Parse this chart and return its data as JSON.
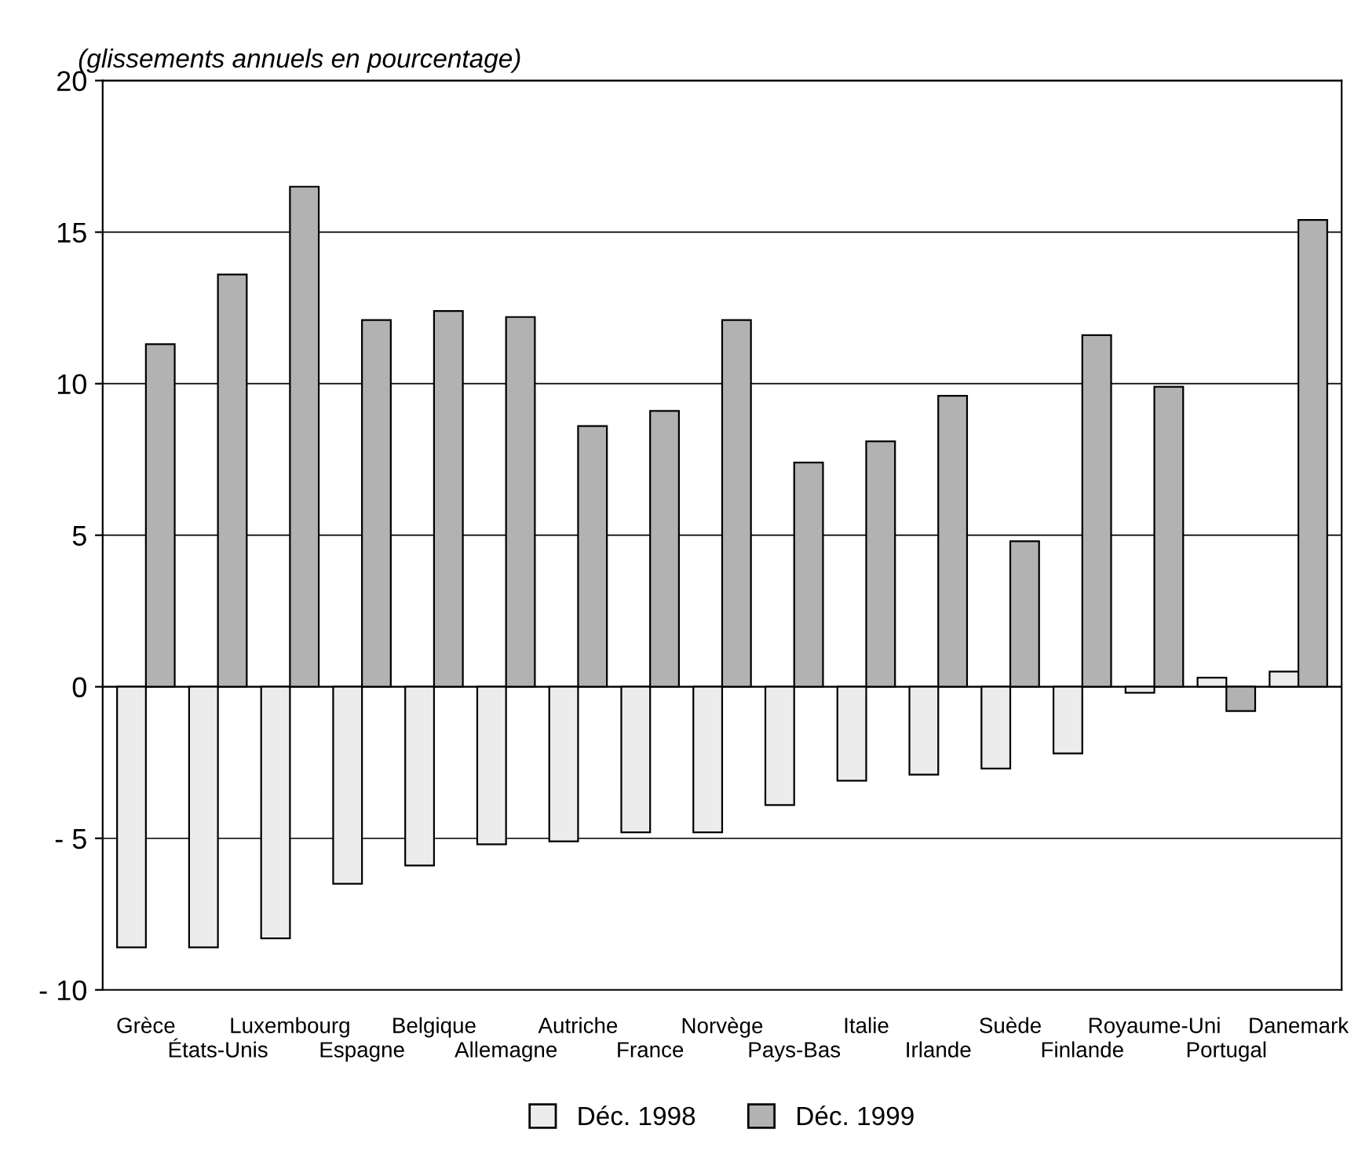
{
  "chart_data": {
    "type": "bar",
    "title": "(glissements annuels en pourcentage)",
    "categories": [
      "Grèce",
      "États-Unis",
      "Luxembourg",
      "Espagne",
      "Belgique",
      "Allemagne",
      "Autriche",
      "France",
      "Norvège",
      "Pays-Bas",
      "Italie",
      "Irlande",
      "Suède",
      "Finlande",
      "Royaume-Uni",
      "Portugal",
      "Danemark"
    ],
    "series": [
      {
        "name": "Déc. 1998",
        "color": "#ececec",
        "values": [
          -8.6,
          -8.6,
          -8.3,
          -6.5,
          -5.9,
          -5.2,
          -5.1,
          -4.8,
          -4.8,
          -3.9,
          -3.1,
          -2.9,
          -2.7,
          -2.2,
          -0.2,
          0.3,
          0.5
        ]
      },
      {
        "name": "Déc. 1999",
        "color": "#b2b2b2",
        "values": [
          11.3,
          13.6,
          16.5,
          12.1,
          12.4,
          12.2,
          8.6,
          9.1,
          12.1,
          7.4,
          8.1,
          9.6,
          4.8,
          11.6,
          9.9,
          -0.8,
          15.4
        ]
      }
    ],
    "ylim": [
      -10,
      20
    ],
    "yticks": [
      {
        "value": -10,
        "label": "- 10"
      },
      {
        "value": -5,
        "label": "- 5"
      },
      0,
      5,
      10,
      15,
      20
    ],
    "grid": "y",
    "legend": "bottom"
  }
}
